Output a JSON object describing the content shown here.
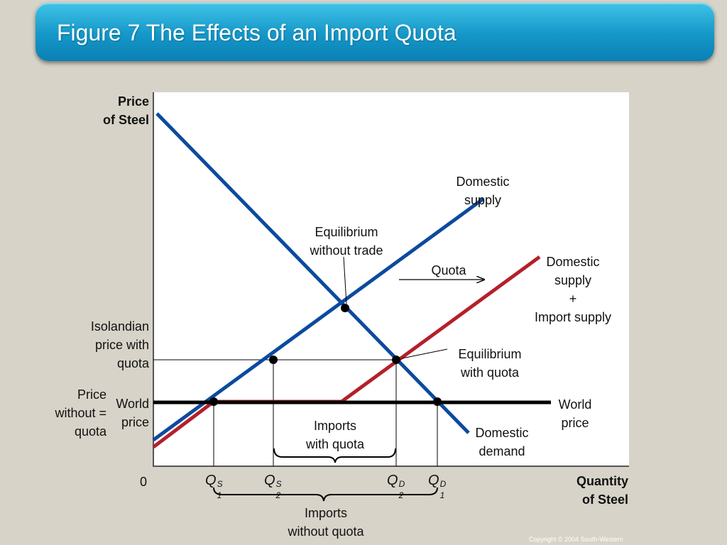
{
  "header": {
    "title": "Figure 7 The Effects of an Import Quota"
  },
  "axes": {
    "y_label": "Price\nof Steel",
    "x_label": "Quantity\nof Steel",
    "origin": "0"
  },
  "labels": {
    "domestic_supply": "Domestic\nsupply",
    "domestic_plus_import": "Domestic\nsupply\n+\nImport supply",
    "domestic_demand": "Domestic\ndemand",
    "world_price_right": "World\nprice",
    "world_price_left": "World\nprice",
    "price_without_quota": "Price\nwithout =\nquota",
    "isolandian_price": "Isolandian\nprice with\nquota",
    "equilibrium_without_trade": "Equilibrium\nwithout trade",
    "equilibrium_with_quota": "Equilibrium\nwith quota",
    "quota": "Quota",
    "imports_with_quota": "Imports\nwith quota",
    "imports_without_quota": "Imports\nwithout quota"
  },
  "quantity_ticks": [
    {
      "id": "q1s",
      "base": "Q",
      "sup": "S",
      "sub": "1"
    },
    {
      "id": "q2s",
      "base": "Q",
      "sup": "S",
      "sub": "2"
    },
    {
      "id": "q2d",
      "base": "Q",
      "sup": "D",
      "sub": "2"
    },
    {
      "id": "q1d",
      "base": "Q",
      "sup": "D",
      "sub": "1"
    }
  ],
  "colors": {
    "supply_demand": "#0b4a9e",
    "domestic_plus_import": "#b4202a",
    "world_price": "#000000",
    "title_bar": "#1497c8",
    "background": "#d7d3c8"
  },
  "footer": {
    "copyright": "Copyright © 2004  South-Western"
  }
}
